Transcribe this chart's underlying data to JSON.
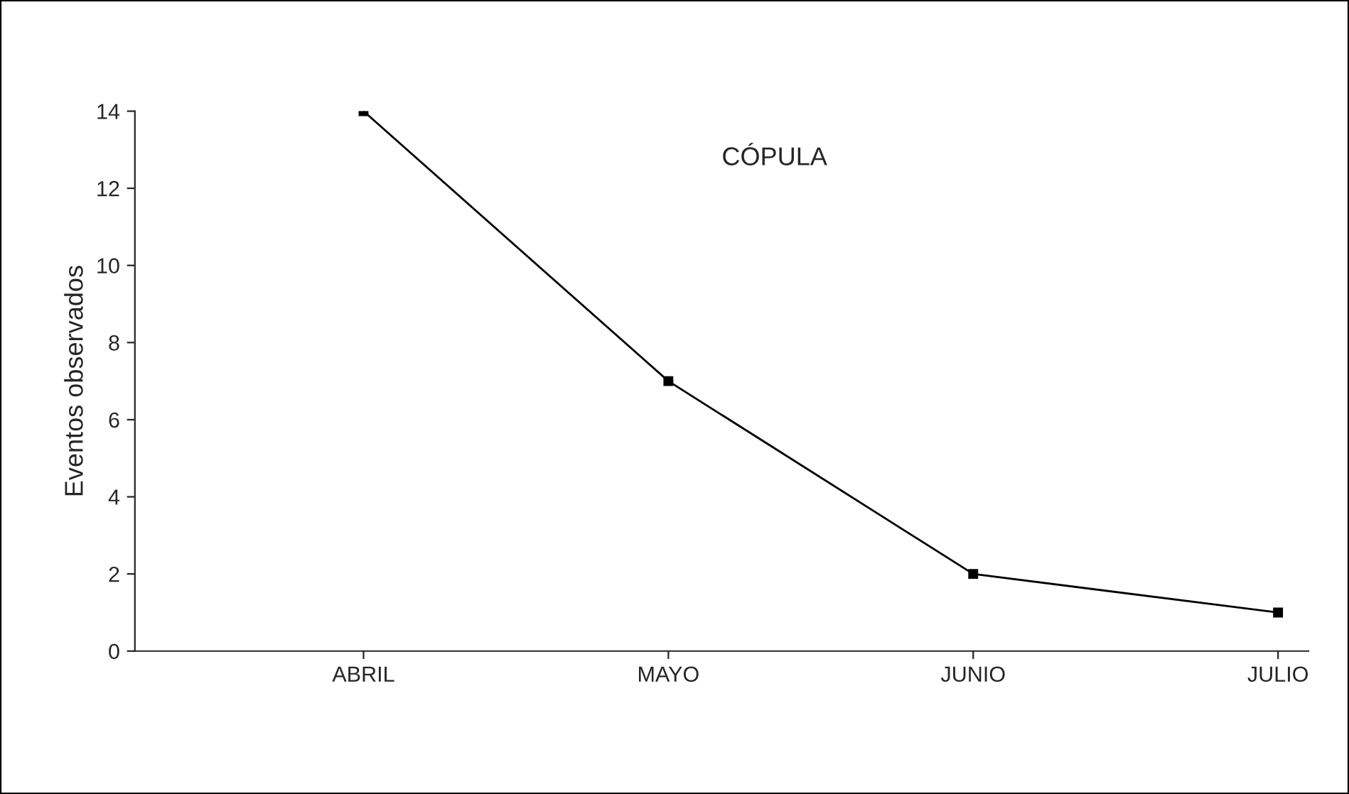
{
  "chart_data": {
    "type": "line",
    "title": "CÓPULA",
    "ylabel": "Eventos observados",
    "categories": [
      "ABRIL",
      "MAYO",
      "JUNIO",
      "JULIO"
    ],
    "series": [
      {
        "color": "#000000",
        "values": [
          14,
          7,
          2,
          1
        ]
      }
    ],
    "ylim": [
      0,
      14
    ],
    "yticks": [
      0,
      2,
      4,
      6,
      8,
      10,
      12,
      14
    ],
    "grid": false,
    "legend": false,
    "marker": "square",
    "line_style": "solid"
  }
}
